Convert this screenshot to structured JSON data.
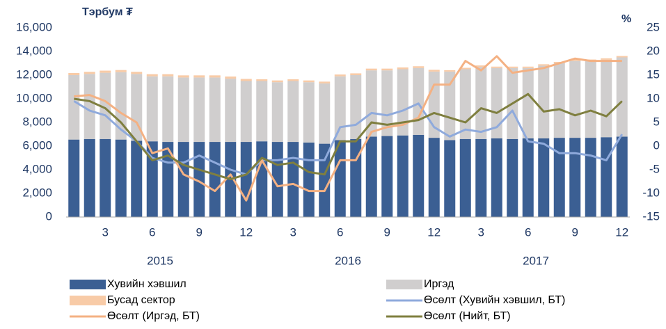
{
  "chart_data": {
    "type": "bar_line",
    "y_axis_title": "Тэрбум ₮",
    "y2_axis_title": "%",
    "categories": [
      null,
      null,
      "3",
      null,
      null,
      "6",
      null,
      null,
      "9",
      null,
      null,
      "12",
      null,
      null,
      "3",
      null,
      null,
      "6",
      null,
      null,
      "9",
      null,
      null,
      "12",
      null,
      null,
      "3",
      null,
      null,
      "6",
      null,
      null,
      "9",
      null,
      null,
      "12"
    ],
    "x_groups": [
      "2015",
      "2016",
      "2017"
    ],
    "series": [
      {
        "name": "Хувийн хэвшил",
        "kind": "bar",
        "color": "#3b5f93",
        "values": [
          6550,
          6600,
          6600,
          6550,
          6450,
          6400,
          6350,
          6350,
          6350,
          6350,
          6350,
          6350,
          6400,
          6350,
          6350,
          6300,
          6200,
          6500,
          6600,
          6800,
          6850,
          6900,
          6950,
          6700,
          6500,
          6600,
          6600,
          6650,
          6600,
          6650,
          6650,
          6700,
          6700,
          6700,
          6750,
          6800
        ]
      },
      {
        "name": "Иргэд",
        "kind": "bar",
        "color": "#d0cece",
        "values": [
          5450,
          5500,
          5600,
          5700,
          5650,
          5500,
          5550,
          5450,
          5450,
          5450,
          5350,
          5150,
          5100,
          5050,
          5150,
          5100,
          5100,
          5400,
          5400,
          5600,
          5550,
          5600,
          5650,
          5600,
          5800,
          5900,
          6100,
          5950,
          6000,
          5950,
          6150,
          6300,
          6500,
          6500,
          6550,
          6700
        ]
      },
      {
        "name": "Бусад сектор",
        "kind": "bar",
        "color": "#f8cba7",
        "values": [
          180,
          180,
          180,
          180,
          180,
          180,
          180,
          180,
          180,
          180,
          180,
          180,
          150,
          150,
          150,
          150,
          150,
          150,
          150,
          150,
          150,
          150,
          150,
          150,
          120,
          120,
          120,
          120,
          120,
          120,
          120,
          120,
          120,
          120,
          120,
          120
        ]
      },
      {
        "name": "Өсөлт (Хувийн хэвшил, БТ)",
        "kind": "line",
        "axis": "y2",
        "color": "#8faadc",
        "values": [
          9.5,
          7.5,
          6.5,
          3.5,
          1,
          -2.5,
          -3.5,
          -3.5,
          -2,
          -3.5,
          -5,
          -6,
          -3,
          -3,
          -2.5,
          -3,
          -3,
          4,
          4.5,
          7,
          6.5,
          7.5,
          9,
          4,
          2,
          3.5,
          3,
          4,
          7.5,
          1,
          0.5,
          -1.5,
          -1.5,
          -2,
          -3,
          2.5
        ]
      },
      {
        "name": "Өсөлт (Иргэд, БТ)",
        "kind": "line",
        "axis": "y2",
        "color": "#f4b183",
        "values": [
          10.5,
          10.8,
          9.5,
          7,
          5,
          -1.5,
          -0.5,
          -6,
          -7.5,
          -9.5,
          -6,
          -11.5,
          -3,
          -8.5,
          -8,
          -9.5,
          -9.5,
          -3,
          -3,
          3,
          4,
          4.5,
          6,
          13,
          13,
          18,
          16,
          19,
          15.5,
          16,
          16.5,
          17.5,
          18.5,
          18,
          18,
          18
        ]
      },
      {
        "name": "Өсөлт (Нийт, БТ)",
        "kind": "line",
        "axis": "y2",
        "color": "#7f7f3f",
        "values": [
          10,
          9.5,
          8,
          5,
          1,
          -3,
          -2,
          -4,
          -5,
          -6,
          -7,
          -6,
          -2.5,
          -4,
          -3.5,
          -5.5,
          -6,
          1,
          1,
          5,
          4.5,
          5,
          5.5,
          7,
          6,
          5,
          8,
          7,
          9,
          11,
          7.3,
          7.8,
          6.5,
          7.5,
          6.3,
          9.5
        ]
      }
    ],
    "ylim": [
      0,
      16000
    ],
    "yticks": [
      0,
      {
        "value": 2000,
        "label": "2,000"
      },
      {
        "value": 4000,
        "label": "4,000"
      },
      {
        "value": 6000,
        "label": "6,000"
      },
      {
        "value": 8000,
        "label": "8,000"
      },
      {
        "value": 10000,
        "label": "10,000"
      },
      {
        "value": 12000,
        "label": "12,000"
      },
      {
        "value": 14000,
        "label": "14,000"
      },
      {
        "value": 16000,
        "label": "16,000"
      }
    ],
    "y2lim": [
      -15,
      25
    ],
    "y2ticks": [
      -15,
      -10,
      -5,
      0,
      5,
      10,
      15,
      20,
      25
    ],
    "grid": false
  }
}
